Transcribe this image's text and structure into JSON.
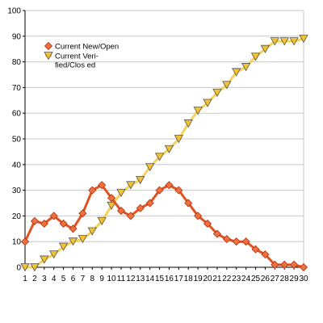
{
  "chart_data": {
    "type": "line",
    "title": "",
    "xlabel": "",
    "ylabel": "",
    "x": [
      1,
      2,
      3,
      4,
      5,
      6,
      7,
      8,
      9,
      10,
      11,
      12,
      13,
      14,
      15,
      16,
      17,
      18,
      19,
      20,
      21,
      22,
      23,
      24,
      25,
      26,
      27,
      28,
      29,
      30
    ],
    "ylim": [
      0,
      100
    ],
    "yticks": [
      0,
      10,
      20,
      30,
      40,
      50,
      60,
      70,
      80,
      90,
      100
    ],
    "grid": "horizontal",
    "legend_position": "top-left",
    "series": [
      {
        "name": "Current New/Open",
        "legend_lines": [
          "Current New/Open"
        ],
        "color": "#e0521e",
        "marker_fill": "#f07040",
        "marker": "diamond",
        "values": [
          10,
          18,
          17,
          20,
          17,
          15,
          21,
          30,
          32,
          27,
          22,
          20,
          23,
          25,
          30,
          32,
          30,
          25,
          20,
          17,
          13,
          11,
          10,
          10,
          7,
          5,
          1,
          1,
          1,
          0
        ]
      },
      {
        "name": "Current Verified/Closed",
        "legend_lines": [
          "Current Veri-",
          "fied/Clos ed"
        ],
        "color": "#f5d25a",
        "marker_fill": "#f2c230",
        "marker": "triangle-down",
        "values": [
          0,
          0,
          3,
          5,
          8,
          10,
          11,
          14,
          18,
          24,
          29,
          32,
          34,
          39,
          43,
          46,
          50,
          56,
          61,
          64,
          68,
          71,
          76,
          78,
          82,
          85,
          88,
          88,
          88,
          89
        ]
      }
    ]
  }
}
